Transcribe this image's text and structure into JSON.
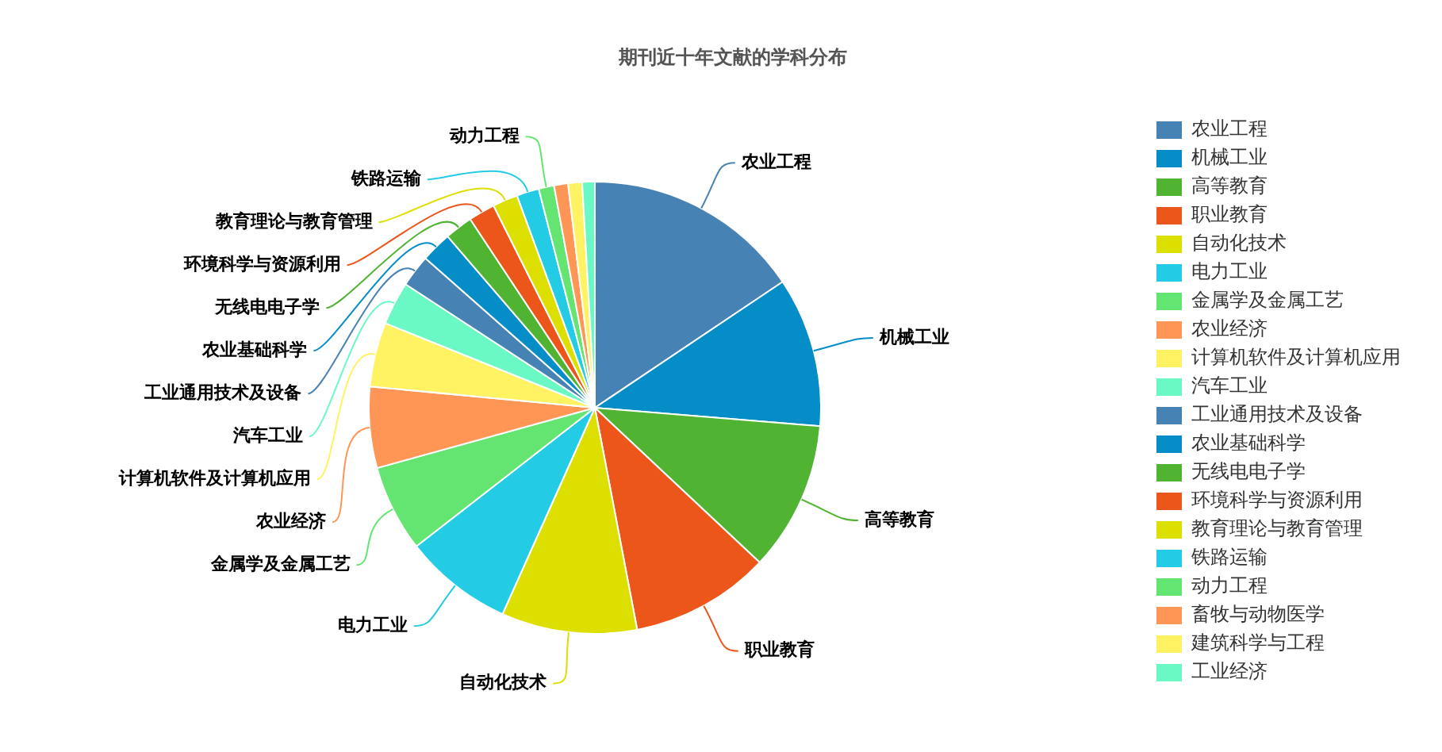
{
  "chart_data": {
    "type": "pie",
    "title": "期刊近十年文献的学科分布",
    "categories": [
      "农业工程",
      "机械工业",
      "高等教育",
      "职业教育",
      "自动化技术",
      "电力工业",
      "金属学及金属工艺",
      "农业经济",
      "计算机软件及计算机应用",
      "汽车工业",
      "工业通用技术及设备",
      "农业基础科学",
      "无线电电子学",
      "环境科学与资源利用",
      "教育理论与教育管理",
      "铁路运输",
      "动力工程",
      "畜牧与动物医学",
      "建筑科学与工程",
      "工业经济"
    ],
    "values": [
      15.6,
      10.7,
      10.7,
      10.0,
      9.7,
      7.8,
      6.2,
      5.8,
      4.6,
      3.1,
      2.3,
      2.2,
      2.0,
      1.9,
      1.8,
      1.6,
      1.1,
      1.0,
      1.0,
      0.9
    ],
    "colors": [
      "#4682b4",
      "#058dc7",
      "#50b432",
      "#ed561b",
      "#dddf00",
      "#24cbe5",
      "#64e572",
      "#ff9655",
      "#fff263",
      "#6af9c4",
      "#4682b4",
      "#058dc7",
      "#50b432",
      "#ed561b",
      "#dddf00",
      "#24cbe5",
      "#64e572",
      "#ff9655",
      "#fff263",
      "#6af9c4"
    ],
    "legend": "right"
  }
}
